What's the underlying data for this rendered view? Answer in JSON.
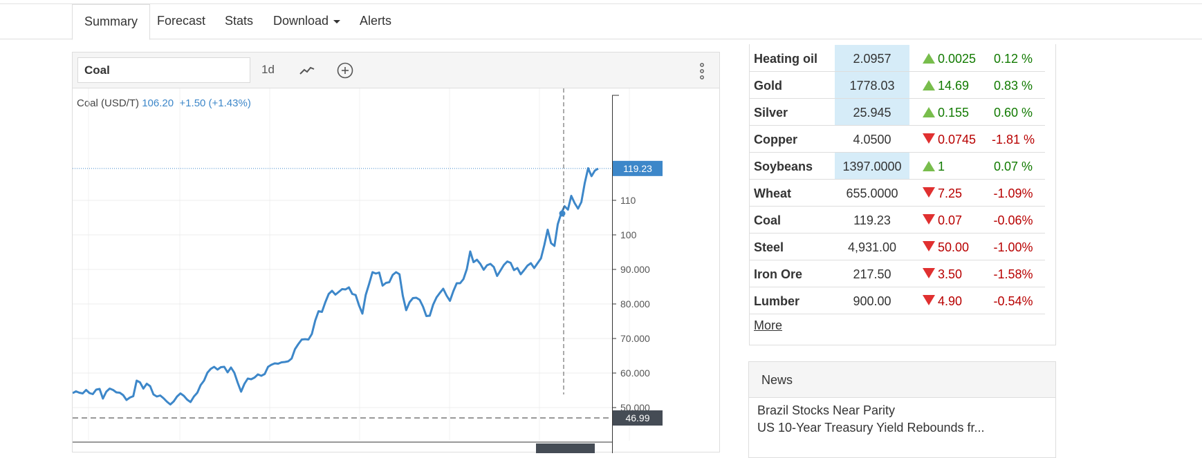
{
  "nav": {
    "tabs": [
      {
        "label": "Summary",
        "active": true
      },
      {
        "label": "Forecast"
      },
      {
        "label": "Stats"
      },
      {
        "label": "Download",
        "dropdown": true
      },
      {
        "label": "Alerts"
      }
    ]
  },
  "chart_toolbar": {
    "symbol_value": "Coal",
    "period": "1d",
    "icons": [
      "line-chart-icon",
      "plus-circle-icon",
      "more-vertical-icon"
    ]
  },
  "legend": {
    "name": "Coal (USD/T)",
    "price": "106.20",
    "change": "+1.50 (+1.43%)"
  },
  "chart_data": {
    "type": "line",
    "y_ticks": [
      "110",
      "100",
      "90.000",
      "80.000",
      "70.000",
      "60.000",
      "50.000"
    ],
    "ylim": [
      45,
      125
    ],
    "last_price_label": "119.23",
    "low_line_label": "46.99",
    "series": [
      {
        "color": "#3d87c9",
        "values": [
          54.2,
          54.7,
          54.3,
          54.1,
          55.1,
          54.2,
          53.9,
          55.2,
          55.4,
          52.6,
          54.6,
          55.5,
          55.1,
          54.4,
          54.3,
          53.6,
          52.2,
          52.9,
          53.3,
          57.8,
          57.3,
          55.5,
          56.9,
          56.2,
          53.8,
          53.2,
          53.5,
          52.7,
          51.7,
          50.9,
          51.8,
          53.2,
          54.1,
          53.4,
          52.3,
          51.6,
          53.2,
          54.3,
          56.5,
          57.8,
          60.1,
          61.2,
          61.8,
          61.0,
          61.7,
          61.8,
          60.2,
          61.6,
          60.1,
          57.2,
          54.6,
          56.9,
          58.4,
          58.2,
          58.7,
          59.6,
          59.2,
          59.7,
          61.8,
          62.4,
          62.8,
          62.7,
          63.1,
          63.2,
          63.4,
          64.2,
          66.9,
          68.4,
          69.7,
          69.8,
          69.7,
          71.3,
          75.2,
          77.9,
          77.7,
          80.5,
          82.9,
          83.8,
          82.7,
          83.5,
          84.3,
          84.2,
          84.8,
          82.9,
          82.6,
          79.6,
          77.2,
          82.6,
          85.8,
          89.2,
          88.8,
          89.1,
          85.3,
          86.1,
          86.3,
          88.4,
          89.2,
          88.6,
          82.4,
          78.2,
          80.5,
          81.7,
          81.8,
          81.2,
          79.2,
          76.5,
          76.6,
          79.8,
          81.9,
          83.2,
          84.4,
          82.4,
          80.9,
          83.7,
          86.0,
          86.0,
          87.2,
          90.1,
          95.2,
          92.1,
          92.8,
          91.6,
          89.9,
          91.2,
          91.6,
          90.7,
          88.1,
          89.7,
          91.3,
          92.3,
          91.9,
          89.8,
          90.4,
          88.6,
          89.8,
          91.1,
          91.8,
          90.4,
          91.8,
          93.2,
          97.1,
          101.5,
          97.6,
          96.8,
          103.1,
          106.2,
          108.3,
          107.3,
          111.3,
          109.2,
          107.6,
          109.5,
          115.0,
          119.3,
          117.0,
          118.6,
          119.2
        ],
        "crosshair_value": 106.2
      }
    ]
  },
  "quotes": [
    {
      "name": "Heating oil",
      "price": "2.0957",
      "highlight": true,
      "direction": "up",
      "change": "0.0025",
      "pct": "0.12 %"
    },
    {
      "name": "Gold",
      "price": "1778.03",
      "highlight": true,
      "direction": "up",
      "change": "14.69",
      "pct": "0.83 %"
    },
    {
      "name": "Silver",
      "price": "25.945",
      "highlight": true,
      "direction": "up",
      "change": "0.155",
      "pct": "0.60 %"
    },
    {
      "name": "Copper",
      "price": "4.0500",
      "highlight": false,
      "direction": "down",
      "change": "0.0745",
      "pct": "-1.81 %"
    },
    {
      "name": "Soybeans",
      "price": "1397.0000",
      "highlight": true,
      "direction": "up",
      "change": "1",
      "pct": "0.07 %"
    },
    {
      "name": "Wheat",
      "price": "655.0000",
      "highlight": false,
      "direction": "down",
      "change": "7.25",
      "pct": "-1.09%"
    },
    {
      "name": "Coal",
      "price": "119.23",
      "highlight": false,
      "direction": "down",
      "change": "0.07",
      "pct": "-0.06%"
    },
    {
      "name": "Steel",
      "price": "4,931.00",
      "highlight": false,
      "direction": "down",
      "change": "50.00",
      "pct": "-1.00%"
    },
    {
      "name": "Iron Ore",
      "price": "217.50",
      "highlight": false,
      "direction": "down",
      "change": "3.50",
      "pct": "-1.58%"
    },
    {
      "name": "Lumber",
      "price": "900.00",
      "highlight": false,
      "direction": "down",
      "change": "4.90",
      "pct": "-0.54%"
    }
  ],
  "more_link": "More",
  "news": {
    "title": "News",
    "items": [
      "Brazil Stocks Near Parity",
      "US 10-Year Treasury Yield Rebounds fr..."
    ]
  },
  "colors": {
    "accent": "#3d87c9",
    "up": "#117a00",
    "down": "#b80000",
    "highlight": "#d6ecf8"
  }
}
